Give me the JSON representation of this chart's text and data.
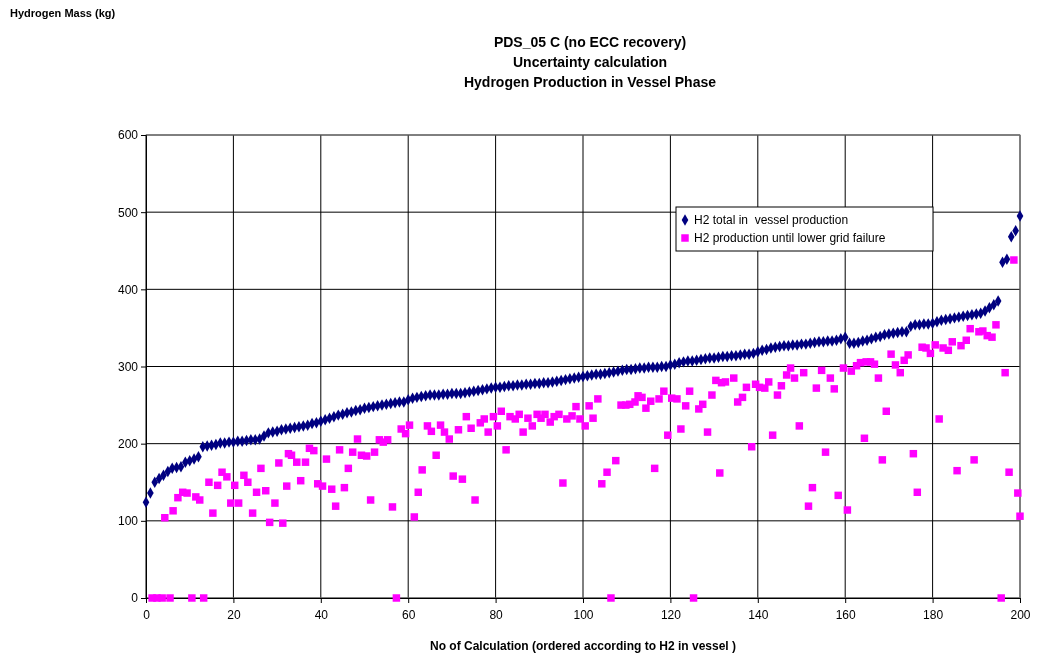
{
  "chart_data": {
    "type": "scatter",
    "title": "PDS_05 C (no ECC recovery)",
    "subtitle": "Uncertainty calculation\nHydrogen Production in Vessel Phase",
    "xlabel": "No of Calculation (ordered according to H2 in vessel )",
    "annotations": [
      "Hydrogen Mass (kg)"
    ],
    "xlim": [
      0,
      200
    ],
    "xticks": [
      0,
      20,
      40,
      60,
      80,
      100,
      120,
      140,
      160,
      180,
      200
    ],
    "ylim": [
      0,
      600
    ],
    "yticks": [
      0,
      100,
      200,
      300,
      400,
      500,
      600
    ],
    "grid": true,
    "legend": "top right",
    "series": [
      {
        "name": "H2 total in  vessel production",
        "color": "#000080",
        "marker": "diamond",
        "x": [
          0,
          1,
          2,
          3,
          4,
          5,
          6,
          7,
          8,
          9,
          10,
          11,
          12,
          13,
          14,
          15,
          16,
          17,
          18,
          19,
          20,
          21,
          22,
          23,
          24,
          25,
          26,
          27,
          28,
          29,
          30,
          31,
          32,
          33,
          34,
          35,
          36,
          37,
          38,
          39,
          40,
          41,
          42,
          43,
          44,
          45,
          46,
          47,
          48,
          49,
          50,
          51,
          52,
          53,
          54,
          55,
          56,
          57,
          58,
          59,
          60,
          61,
          62,
          63,
          64,
          65,
          66,
          67,
          68,
          69,
          70,
          71,
          72,
          73,
          74,
          75,
          76,
          77,
          78,
          79,
          80,
          81,
          82,
          83,
          84,
          85,
          86,
          87,
          88,
          89,
          90,
          91,
          92,
          93,
          94,
          95,
          96,
          97,
          98,
          99,
          100,
          101,
          102,
          103,
          104,
          105,
          106,
          107,
          108,
          109,
          110,
          111,
          112,
          113,
          114,
          115,
          116,
          117,
          118,
          119,
          120,
          121,
          122,
          123,
          124,
          125,
          126,
          127,
          128,
          129,
          130,
          131,
          132,
          133,
          134,
          135,
          136,
          137,
          138,
          139,
          140,
          141,
          142,
          143,
          144,
          145,
          146,
          147,
          148,
          149,
          150,
          151,
          152,
          153,
          154,
          155,
          156,
          157,
          158,
          159,
          160,
          161,
          162,
          163,
          164,
          165,
          166,
          167,
          168,
          169,
          170,
          171,
          172,
          173,
          174,
          175,
          176,
          177,
          178,
          179,
          180,
          181,
          182,
          183,
          184,
          185,
          186,
          187,
          188,
          189,
          190,
          191,
          192,
          193,
          194,
          195,
          196,
          197,
          198,
          199,
          200
        ],
        "values": [
          124,
          136,
          150,
          155,
          159,
          164,
          168,
          169,
          170,
          176,
          178,
          180,
          183,
          196,
          197,
          198,
          199,
          201,
          201,
          202,
          202,
          203,
          203,
          204,
          205,
          205,
          206,
          210,
          214,
          215,
          216,
          218,
          219,
          220,
          221,
          222,
          223,
          224,
          226,
          227,
          229,
          231,
          233,
          235,
          237,
          238,
          240,
          241,
          243,
          244,
          246,
          247,
          248,
          249,
          250,
          251,
          252,
          253,
          254,
          254,
          257,
          259,
          260,
          261,
          262,
          263,
          263,
          263,
          264,
          264,
          265,
          265,
          265,
          266,
          267,
          268,
          269,
          270,
          271,
          272,
          273,
          273,
          274,
          275,
          275,
          276,
          276,
          277,
          277,
          278,
          278,
          279,
          279,
          280,
          281,
          282,
          283,
          284,
          285,
          286,
          287,
          288,
          289,
          290,
          290,
          291,
          292,
          293,
          294,
          295,
          296,
          296,
          297,
          298,
          298,
          299,
          299,
          299,
          300,
          300,
          302,
          303,
          305,
          306,
          307,
          307,
          308,
          309,
          310,
          311,
          311,
          312,
          313,
          313,
          314,
          314,
          315,
          316,
          316,
          317,
          319,
          321,
          322,
          324,
          325,
          326,
          327,
          327,
          328,
          328,
          329,
          329,
          330,
          331,
          332,
          332,
          333,
          333,
          334,
          336,
          338,
          330,
          330,
          331,
          333,
          334,
          336,
          338,
          339,
          341,
          342,
          343,
          344,
          345,
          345,
          352,
          354,
          354,
          355,
          355,
          356,
          358,
          360,
          361,
          362,
          363,
          364,
          365,
          366,
          367,
          368,
          369,
          372,
          376,
          380,
          385,
          435,
          439,
          468,
          476,
          495
        ]
      },
      {
        "name": "H2 production until lower grid failure",
        "color": "#ff00ff",
        "marker": "square",
        "x": [
          1.4,
          2.5,
          3.7,
          5.5,
          10.5,
          13.2,
          4.3,
          6.2,
          7.3,
          8.4,
          9.4,
          11.4,
          12.3,
          14.4,
          15.3,
          16.4,
          17.4,
          18.5,
          19.4,
          20.3,
          21.2,
          22.4,
          23.3,
          24.4,
          25.3,
          26.3,
          27.4,
          28.3,
          29.5,
          30.4,
          31.3,
          32.2,
          32.6,
          33.3,
          34.5,
          35.4,
          36.5,
          37.4,
          38.4,
          39.3,
          40.4,
          41.3,
          42.5,
          43.4,
          44.3,
          45.4,
          46.3,
          47.3,
          48.4,
          49.3,
          50.5,
          51.4,
          52.3,
          53.4,
          54.3,
          55.3,
          56.4,
          57.3,
          58.4,
          59.4,
          60.3,
          61.4,
          62.3,
          63.2,
          64.4,
          65.3,
          66.4,
          67.4,
          68.3,
          69.4,
          70.3,
          71.5,
          72.4,
          73.3,
          74.4,
          75.3,
          76.5,
          77.4,
          78.3,
          79.5,
          80.4,
          81.3,
          82.4,
          83.3,
          84.5,
          85.4,
          86.3,
          87.4,
          88.4,
          89.5,
          90.4,
          91.3,
          92.5,
          93.4,
          94.5,
          95.4,
          96.3,
          97.5,
          98.4,
          99.3,
          100.5,
          101.4,
          102.3,
          103.4,
          104.3,
          105.5,
          106.4,
          107.5,
          108.7,
          109.8,
          110.7,
          111.9,
          112.6,
          113.5,
          114.4,
          115.5,
          116.4,
          117.4,
          118.5,
          119.4,
          120.3,
          121.5,
          122.4,
          123.5,
          124.4,
          125.3,
          126.5,
          127.4,
          128.5,
          129.5,
          130.4,
          131.3,
          131.7,
          132.6,
          134.5,
          135.4,
          136.5,
          137.4,
          138.6,
          139.5,
          140.4,
          141.6,
          142.5,
          143.4,
          144.5,
          145.4,
          146.6,
          147.5,
          148.4,
          149.5,
          150.5,
          151.6,
          152.5,
          153.4,
          154.6,
          155.5,
          156.6,
          157.5,
          158.4,
          159.6,
          160.5,
          161.4,
          162.6,
          163.5,
          164.4,
          164.8,
          165.8,
          166.7,
          167.6,
          168.5,
          169.4,
          170.5,
          171.5,
          172.6,
          173.5,
          174.4,
          175.6,
          176.5,
          177.6,
          178.5,
          179.5,
          180.6,
          181.5,
          182.4,
          183.6,
          184.5,
          185.6,
          186.5,
          187.7,
          188.6,
          189.5,
          190.6,
          191.5,
          192.5,
          193.6,
          194.5,
          195.7,
          196.6,
          197.5,
          198.6,
          199.5,
          200
        ],
        "values": [
          0,
          0,
          0,
          0,
          0,
          0,
          104,
          113,
          130,
          137,
          136,
          131,
          127,
          150,
          110,
          146,
          163,
          157,
          123,
          146,
          123,
          159,
          150,
          110,
          137,
          168,
          139,
          98,
          123,
          175,
          97,
          145,
          187,
          185,
          176,
          152,
          176,
          194,
          191,
          148,
          145,
          180,
          141,
          119,
          192,
          143,
          168,
          189,
          206,
          185,
          184,
          127,
          189,
          205,
          202,
          205,
          118,
          0,
          219,
          213,
          224,
          105,
          137,
          166,
          223,
          216,
          185,
          224,
          215,
          206,
          158,
          218,
          154,
          235,
          220,
          127,
          227,
          232,
          215,
          235,
          223,
          242,
          192,
          235,
          232,
          238,
          215,
          233,
          223,
          238,
          233,
          238,
          228,
          235,
          238,
          149,
          232,
          236,
          248,
          232,
          223,
          249,
          233,
          258,
          148,
          163,
          0,
          178,
          250,
          250,
          251,
          254,
          262,
          260,
          246,
          255,
          168,
          258,
          268,
          211,
          259,
          258,
          219,
          249,
          268,
          0,
          245,
          251,
          215,
          263,
          282,
          162,
          279,
          280,
          285,
          254,
          260,
          273,
          196,
          277,
          273,
          272,
          280,
          211,
          263,
          275,
          289,
          298,
          285,
          223,
          292,
          119,
          143,
          272,
          295,
          189,
          285,
          271,
          133,
          298,
          114,
          294,
          301,
          305,
          207,
          306,
          306,
          303,
          285,
          179,
          242,
          316,
          302,
          292,
          308,
          315,
          187,
          137,
          325,
          324,
          317,
          328,
          232,
          324,
          321,
          332,
          165,
          327,
          334,
          349,
          179,
          345,
          346,
          340,
          338,
          354,
          0,
          292,
          163,
          438,
          136,
          106
        ]
      }
    ]
  }
}
